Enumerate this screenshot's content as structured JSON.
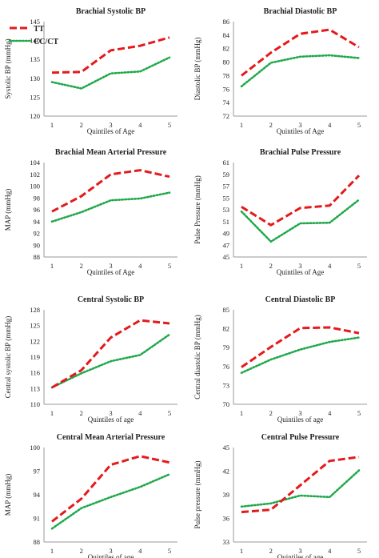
{
  "legend": {
    "items": [
      {
        "label": "TT",
        "color": "#e41a1c",
        "dash": "dashed"
      },
      {
        "label": "CC/CT",
        "color": "#1fa84a",
        "dash": "dotted"
      }
    ]
  },
  "chart_data": [
    {
      "type": "line",
      "title": "Brachial Systolic BP",
      "xlabel": "Quintiles of Age",
      "ylabel": "Systolic BP (mmHg)",
      "categories": [
        "1",
        "2",
        "3",
        "4",
        "5"
      ],
      "ylim": [
        120,
        145
      ],
      "yticks": [
        120,
        125,
        130,
        135,
        140,
        145
      ],
      "series": [
        {
          "name": "TT",
          "values": [
            131.5,
            131.7,
            137.4,
            138.6,
            140.8
          ]
        },
        {
          "name": "CC/CT",
          "values": [
            129.0,
            127.3,
            131.3,
            131.8,
            135.5
          ]
        }
      ]
    },
    {
      "type": "line",
      "title": "Brachial Diastolic BP",
      "xlabel": "Quintiles of Age",
      "ylabel": "Diastolic BP (mmHg)",
      "categories": [
        "1",
        "2",
        "3",
        "4",
        "5"
      ],
      "ylim": [
        72,
        86
      ],
      "yticks": [
        72,
        74,
        76,
        78,
        80,
        82,
        84,
        86
      ],
      "series": [
        {
          "name": "TT",
          "values": [
            78.0,
            81.4,
            84.2,
            84.8,
            82.2
          ]
        },
        {
          "name": "CC/CT",
          "values": [
            76.4,
            79.9,
            80.8,
            81.0,
            80.6
          ]
        }
      ]
    },
    {
      "type": "line",
      "title": "Brachial Mean Arterial Pressure",
      "xlabel": "Quintiles of Age",
      "ylabel": "MAP (mmHg)",
      "categories": [
        "1",
        "2",
        "3",
        "4",
        "5"
      ],
      "ylim": [
        88,
        104
      ],
      "yticks": [
        88,
        90,
        92,
        94,
        96,
        98,
        100,
        102,
        104
      ],
      "series": [
        {
          "name": "TT",
          "values": [
            95.7,
            98.3,
            102.0,
            102.7,
            101.6
          ]
        },
        {
          "name": "CC/CT",
          "values": [
            94.0,
            95.6,
            97.6,
            97.9,
            98.9
          ]
        }
      ]
    },
    {
      "type": "line",
      "title": "Brachial Pulse Pressure",
      "xlabel": "Quintiles of Age",
      "ylabel": "Pulse Pressure (mmHg)",
      "categories": [
        "1",
        "2",
        "3",
        "4",
        "5"
      ],
      "ylim": [
        45,
        61
      ],
      "yticks": [
        45,
        47,
        49,
        51,
        53,
        55,
        57,
        59,
        61
      ],
      "series": [
        {
          "name": "TT",
          "values": [
            53.5,
            50.4,
            53.3,
            53.7,
            58.8
          ]
        },
        {
          "name": "CC/CT",
          "values": [
            52.7,
            47.6,
            50.7,
            50.8,
            54.7
          ]
        }
      ]
    },
    {
      "type": "line",
      "title": "Central Systolic BP",
      "xlabel": "Quintiles of age",
      "ylabel": "Central systolic BP (mmHg)",
      "categories": [
        "1",
        "2",
        "3",
        "4",
        "5"
      ],
      "ylim": [
        110,
        128
      ],
      "yticks": [
        110,
        113,
        116,
        119,
        122,
        125,
        128
      ],
      "series": [
        {
          "name": "TT",
          "values": [
            113.2,
            116.5,
            122.7,
            126.0,
            125.4
          ]
        },
        {
          "name": "CC/CT",
          "values": [
            113.2,
            115.9,
            118.2,
            119.4,
            123.3
          ]
        }
      ]
    },
    {
      "type": "line",
      "title": "Central Diastolic BP",
      "xlabel": "Quintiles of age",
      "ylabel": "Central diastolic BP (mmHg)",
      "categories": [
        "1",
        "2",
        "3",
        "4",
        "5"
      ],
      "ylim": [
        70,
        85
      ],
      "yticks": [
        70,
        73,
        76,
        79,
        82,
        85
      ],
      "series": [
        {
          "name": "TT",
          "values": [
            75.9,
            79.1,
            82.1,
            82.2,
            81.3
          ]
        },
        {
          "name": "CC/CT",
          "values": [
            75.0,
            77.1,
            78.7,
            79.9,
            80.6
          ]
        }
      ]
    },
    {
      "type": "line",
      "title": "Central Mean Arterial Pressure",
      "xlabel": "Quintiles of age",
      "ylabel": "MAP (mmHg)",
      "categories": [
        "1",
        "2",
        "3",
        "4",
        "5"
      ],
      "ylim": [
        88,
        100
      ],
      "yticks": [
        88,
        91,
        94,
        97,
        100
      ],
      "series": [
        {
          "name": "TT",
          "values": [
            90.6,
            93.5,
            97.8,
            98.9,
            98.1
          ]
        },
        {
          "name": "CC/CT",
          "values": [
            89.7,
            92.3,
            93.7,
            95.0,
            96.6
          ]
        }
      ]
    },
    {
      "type": "line",
      "title": "Central Pulse Pressure",
      "xlabel": "Quintiles of age",
      "ylabel": "Pulse pressure (mmHg)",
      "categories": [
        "1",
        "2",
        "3",
        "4",
        "5"
      ],
      "ylim": [
        33,
        45
      ],
      "yticks": [
        33,
        36,
        39,
        42,
        45
      ],
      "series": [
        {
          "name": "TT",
          "values": [
            36.8,
            37.1,
            40.2,
            43.3,
            43.8
          ]
        },
        {
          "name": "CC/CT",
          "values": [
            37.5,
            37.9,
            38.9,
            38.7,
            42.1
          ]
        }
      ]
    }
  ]
}
